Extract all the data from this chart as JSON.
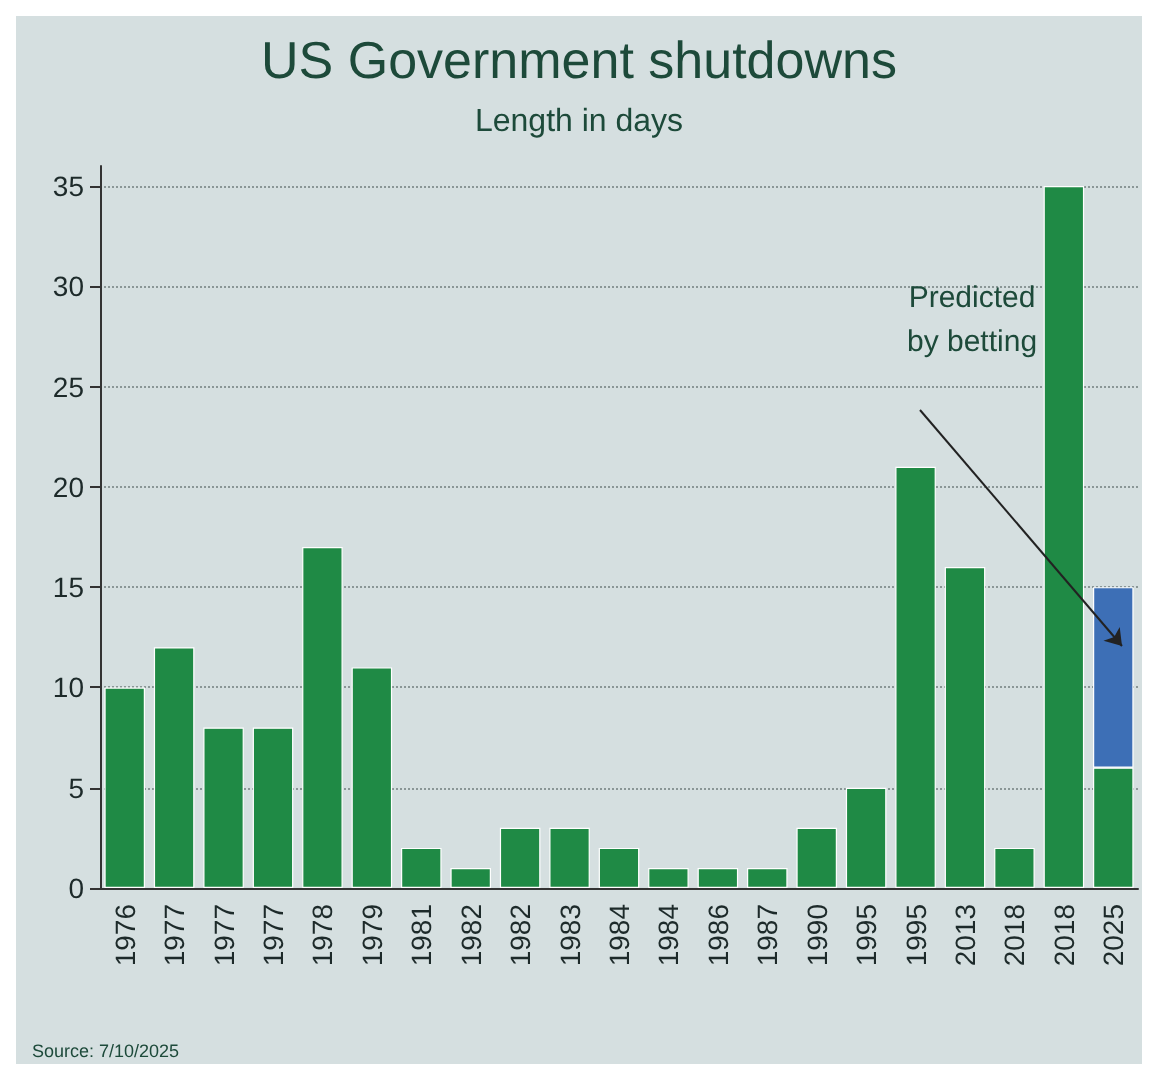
{
  "chart_data": {
    "type": "bar",
    "title": "US Government shutdowns",
    "subtitle": "Length in days",
    "stacked": true,
    "categories": [
      "1976",
      "1977",
      "1977",
      "1977",
      "1978",
      "1979",
      "1981",
      "1982",
      "1982",
      "1983",
      "1984",
      "1984",
      "1986",
      "1987",
      "1990",
      "1995",
      "1995",
      "2013",
      "2018",
      "2018",
      "2025"
    ],
    "series": [
      {
        "color": "#1f8a45",
        "values": [
          10,
          12,
          8,
          8,
          17,
          11,
          2,
          1,
          3,
          3,
          2,
          1,
          1,
          1,
          3,
          5,
          21,
          16,
          2,
          35,
          6
        ]
      },
      {
        "color": "#3d6fb6",
        "values": [
          null,
          null,
          null,
          null,
          null,
          null,
          null,
          null,
          null,
          null,
          null,
          null,
          null,
          null,
          null,
          null,
          null,
          null,
          null,
          null,
          9
        ]
      }
    ],
    "ylim": [
      0,
      36
    ],
    "yticks": [
      0,
      5,
      10,
      15,
      20,
      25,
      30,
      35
    ],
    "grid": "y",
    "annotations": [
      "Predicted\nby betting",
      "Source: 7/10/2025"
    ]
  }
}
